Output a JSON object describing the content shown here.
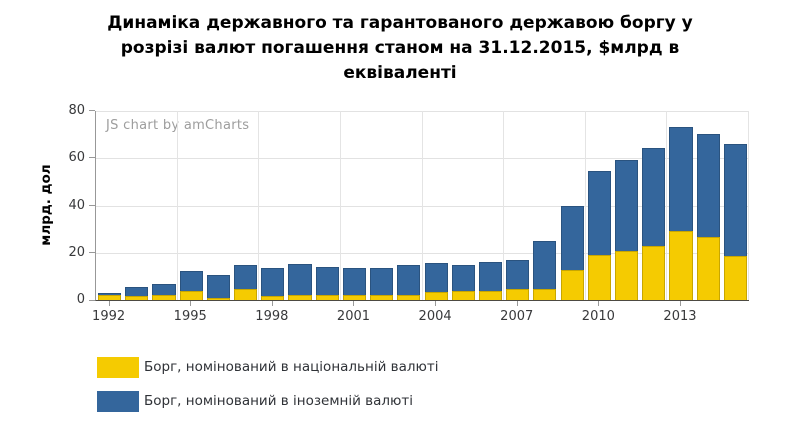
{
  "title": {
    "lines": [
      "Динаміка державного та гарантованого державою боргу у",
      "розрізі валют погашення станом на 31.12.2015, $млрд в",
      "еквіваленті"
    ]
  },
  "watermark": "JS chart by amCharts",
  "chart_data": {
    "type": "bar",
    "stacked": true,
    "title": "Динаміка державного та гарантованого державою боргу у розрізі валют погашення станом на 31.12.2015, $млрд в еквіваленті",
    "ylabel": "млрд. дол",
    "xlabel": "",
    "ylim": [
      0,
      80
    ],
    "yticks": [
      0,
      20,
      40,
      60,
      80
    ],
    "xtick_labels": [
      "1992",
      "1995",
      "1998",
      "2001",
      "2004",
      "2007",
      "2010",
      "2013"
    ],
    "grid": true,
    "legend_position": "bottom",
    "categories": [
      "1992",
      "1993",
      "1994",
      "1995",
      "1996",
      "1997",
      "1998",
      "1999",
      "2000",
      "2001",
      "2002",
      "2003",
      "2004",
      "2005",
      "2006",
      "2007",
      "2008",
      "2009",
      "2010",
      "2011",
      "2012",
      "2013",
      "2014",
      "2015"
    ],
    "series": [
      {
        "name": "Борг, номінований в національній валюті",
        "color": "#F5CB01",
        "values": [
          2.3,
          2.0,
          2.3,
          4.0,
          1.0,
          5.0,
          2.0,
          2.2,
          2.3,
          2.3,
          2.3,
          2.5,
          3.5,
          4.0,
          4.0,
          5.0,
          4.7,
          12.9,
          19.2,
          21.1,
          22.9,
          29.3,
          26.7,
          19.0
        ]
      },
      {
        "name": "Борг, номінований в іноземній валюті",
        "color": "#34669C",
        "values": [
          1.3,
          4.0,
          4.8,
          8.6,
          10.2,
          10.4,
          12.0,
          13.6,
          12.0,
          11.7,
          11.7,
          12.6,
          12.6,
          11.4,
          12.4,
          12.5,
          20.6,
          27.3,
          35.9,
          38.7,
          41.7,
          44.5,
          44.0,
          47.5
        ]
      }
    ]
  }
}
